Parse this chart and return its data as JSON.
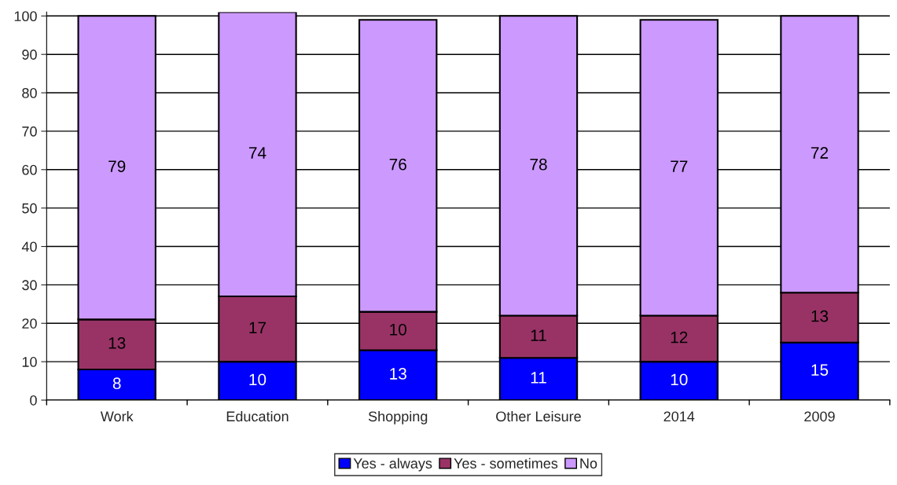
{
  "chart_data": {
    "type": "bar",
    "stacked": true,
    "categories": [
      "Work",
      "Education",
      "Shopping",
      "Other Leisure",
      "2014",
      "2009"
    ],
    "series": [
      {
        "name": "Yes - always",
        "color": "#0000ff",
        "values": [
          8,
          10,
          13,
          11,
          10,
          15
        ]
      },
      {
        "name": "Yes - sometimes",
        "color": "#993366",
        "values": [
          13,
          17,
          10,
          11,
          12,
          13
        ]
      },
      {
        "name": "No",
        "color": "#cc99ff",
        "values": [
          79,
          74,
          76,
          78,
          77,
          72
        ]
      }
    ],
    "ylim": [
      0,
      101
    ],
    "yticks": [
      0,
      10,
      20,
      30,
      40,
      50,
      60,
      70,
      80,
      90,
      100
    ],
    "grid": "y",
    "legend": "bottom",
    "data_labels": true
  }
}
